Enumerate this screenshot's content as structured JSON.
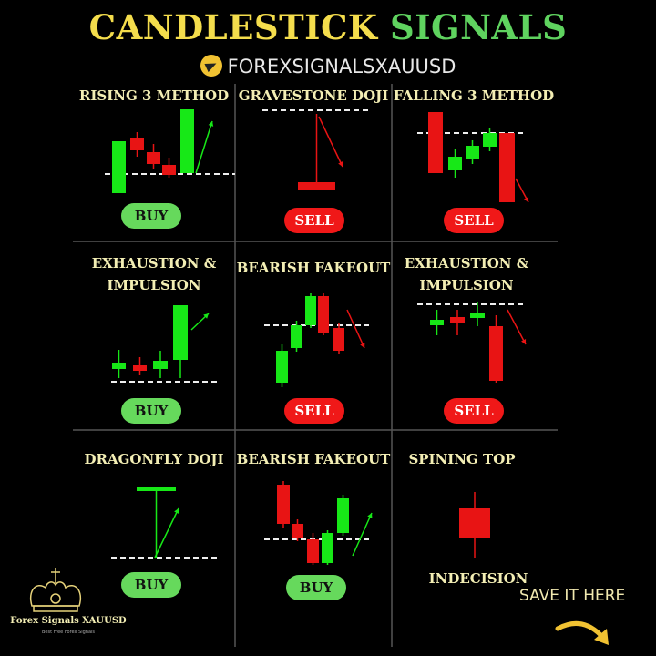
{
  "header": {
    "title_part1": "CANDLESTICK",
    "title_part2": "SIGNALS",
    "handle": "FOREXSIGNALSXAUUSD",
    "handle_icon": "telegram-icon"
  },
  "colors": {
    "title_yellow": "#f4dd4c",
    "title_green": "#5fd35f",
    "bull": "#17e817",
    "bear": "#e81414",
    "buy": "#66d95c",
    "sell": "#f01818"
  },
  "patterns": [
    {
      "name": "RISING 3 METHOD",
      "signal": "BUY"
    },
    {
      "name": "GRAVESTONE DOJI",
      "signal": "SELL"
    },
    {
      "name": "FALLING 3 METHOD",
      "signal": "SELL"
    },
    {
      "name_line1": "EXHAUSTION &",
      "name_line2": "IMPULSION",
      "signal": "BUY"
    },
    {
      "name": "BEARISH FAKEOUT",
      "signal": "SELL"
    },
    {
      "name_line1": "EXHAUSTION &",
      "name_line2": "IMPULSION",
      "signal": "SELL"
    },
    {
      "name": "DRAGONFLY DOJI",
      "signal": "BUY"
    },
    {
      "name": "BEARISH FAKEOUT",
      "signal": "BUY"
    },
    {
      "name": "SPINING TOP",
      "signal": "INDECISION"
    }
  ],
  "brand": {
    "name": "Forex Signals XAUUSD",
    "tagline": "Best Free Forex Signals",
    "logo": "crown-logo"
  },
  "footer": {
    "save_text": "SAVE IT HERE",
    "arrow_icon": "curved-arrow-icon"
  }
}
